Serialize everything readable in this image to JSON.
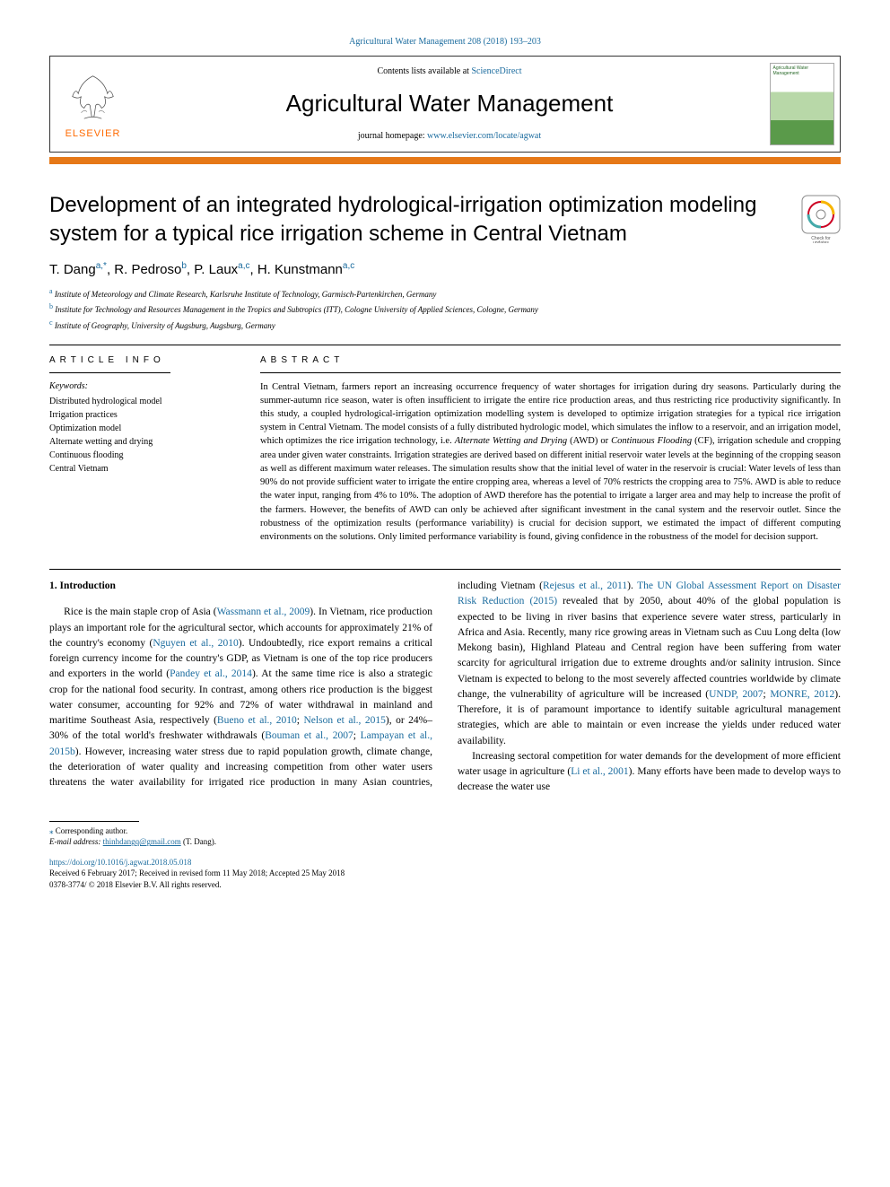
{
  "citation": "Agricultural Water Management 208 (2018) 193–203",
  "header": {
    "contents_prefix": "Contents lists available at ",
    "contents_link": "ScienceDirect",
    "journal_title": "Agricultural Water Management",
    "homepage_prefix": "journal homepage: ",
    "homepage_link": "www.elsevier.com/locate/agwat",
    "elsevier": "ELSEVIER",
    "cover_label": "Agricultural\nWater Management"
  },
  "article": {
    "title": "Development of an integrated hydrological-irrigation optimization modeling system for a typical rice irrigation scheme in Central Vietnam",
    "check_updates": "Check for updates",
    "authors_html": "T. Dang<sup class='sup'>a,</sup><span class='sup'>*</span>, R. Pedroso<sup class='sup'>b</sup>, P. Laux<sup class='sup'>a,c</sup>, H. Kunstmann<sup class='sup'>a,c</sup>",
    "affiliations": [
      {
        "sup": "a",
        "text": "Institute of Meteorology and Climate Research, Karlsruhe Institute of Technology, Garmisch-Partenkirchen, Germany"
      },
      {
        "sup": "b",
        "text": "Institute for Technology and Resources Management in the Tropics and Subtropics (ITT), Cologne University of Applied Sciences, Cologne, Germany"
      },
      {
        "sup": "c",
        "text": "Institute of Geography, University of Augsburg, Augsburg, Germany"
      }
    ]
  },
  "info": {
    "heading": "ARTICLE INFO",
    "kw_label": "Keywords:",
    "keywords": [
      "Distributed hydrological model",
      "Irrigation practices",
      "Optimization model",
      "Alternate wetting and drying",
      "Continuous flooding",
      "Central Vietnam"
    ]
  },
  "abstract": {
    "heading": "ABSTRACT",
    "text": "In Central Vietnam, farmers report an increasing occurrence frequency of water shortages for irrigation during dry seasons. Particularly during the summer-autumn rice season, water is often insufficient to irrigate the entire rice production areas, and thus restricting rice productivity significantly. In this study, a coupled hydrological-irrigation optimization modelling system is developed to optimize irrigation strategies for a typical rice irrigation system in Central Vietnam. The model consists of a fully distributed hydrologic model, which simulates the inflow to a reservoir, and an irrigation model, which optimizes the rice irrigation technology, i.e. <em>Alternate Wetting and Drying</em> (AWD) or <em>Continuous Flooding</em> (CF), irrigation schedule and cropping area under given water constraints. Irrigation strategies are derived based on different initial reservoir water levels at the beginning of the cropping season as well as different maximum water releases. The simulation results show that the initial level of water in the reservoir is crucial: Water levels of less than 90% do not provide sufficient water to irrigate the entire cropping area, whereas a level of 70% restricts the cropping area to 75%. AWD is able to reduce the water input, ranging from 4% to 10%. The adoption of AWD therefore has the potential to irrigate a larger area and may help to increase the profit of the farmers. However, the benefits of AWD can only be achieved after significant investment in the canal system and the reservoir outlet. Since the robustness of the optimization results (performance variability) is crucial for decision support, we estimated the impact of different computing environments on the solutions. Only limited performance variability is found, giving confidence in the robustness of the model for decision support."
  },
  "body": {
    "section_heading": "1. Introduction",
    "p1_pre": "Rice is the main staple crop of Asia (",
    "p1_ref1": "Wassmann et al., 2009",
    "p1_mid1": "). In Vietnam, rice production plays an important role for the agricultural sector, which accounts for approximately 21% of the country's economy (",
    "p1_ref2": "Nguyen et al., 2010",
    "p1_mid2": "). Undoubtedly, rice export remains a critical foreign currency income for the country's GDP, as Vietnam is one of the top rice producers and exporters in the world (",
    "p1_ref3": "Pandey et al., 2014",
    "p1_mid3": "). At the same time rice is also a strategic crop for the national food security. In contrast, among others rice production is the biggest water consumer, accounting for 92% and 72% of water withdrawal in mainland and maritime Southeast Asia, respectively (",
    "p1_ref4": "Bueno et al., 2010",
    "p1_mid4": "; ",
    "p1_ref5": "Nelson et al., 2015",
    "p1_mid5": "), or 24%–30% of the total world's freshwater withdrawals (",
    "p1_ref6": "Bouman et al., 2007",
    "p1_mid6": "; ",
    "p1_ref7": "Lampayan et al., 2015b",
    "p1_mid7": "). However, increasing water stress due to rapid population growth, climate change, the deterioration of water quality and increasing competition from other water users threatens the water availability for irrigated rice ",
    "p1_cont": "production in many Asian countries, including Vietnam (",
    "p1_ref8": "Rejesus et al., 2011",
    "p1_mid8": "). ",
    "p1_ref9": "The UN Global Assessment Report on Disaster Risk Reduction (2015)",
    "p1_mid9": " revealed that by 2050, about 40% of the global population is expected to be living in river basins that experience severe water stress, particularly in Africa and Asia. Recently, many rice growing areas in Vietnam such as Cuu Long delta (low Mekong basin), Highland Plateau and Central region have been suffering from water scarcity for agricultural irrigation due to extreme droughts and/or salinity intrusion. Since Vietnam is expected to belong to the most severely affected countries worldwide by climate change, the vulnerability of agriculture will be increased (",
    "p1_ref10": "UNDP, 2007",
    "p1_mid10": "; ",
    "p1_ref11": "MONRE, 2012",
    "p1_mid11": "). Therefore, it is of paramount importance to identify suitable agricultural management strategies, which are able to maintain or even increase the yields under reduced water availability.",
    "p2_pre": "Increasing sectoral competition for water demands for the development of more efficient water usage in agriculture (",
    "p2_ref1": "Li et al., 2001",
    "p2_post": "). Many efforts have been made to develop ways to decrease the water use"
  },
  "footer": {
    "corr": "Corresponding author.",
    "email_label": "E-mail address: ",
    "email": "thinhdangq@gmail.com",
    "email_name": " (T. Dang).",
    "doi": "https://doi.org/10.1016/j.agwat.2018.05.018",
    "received": "Received 6 February 2017; Received in revised form 11 May 2018; Accepted 25 May 2018",
    "copyright": "0378-3774/ © 2018 Elsevier B.V. All rights reserved."
  },
  "colors": {
    "link": "#1a6b9e",
    "orange": "#e67817",
    "elsevier_orange": "#ff6a00"
  }
}
